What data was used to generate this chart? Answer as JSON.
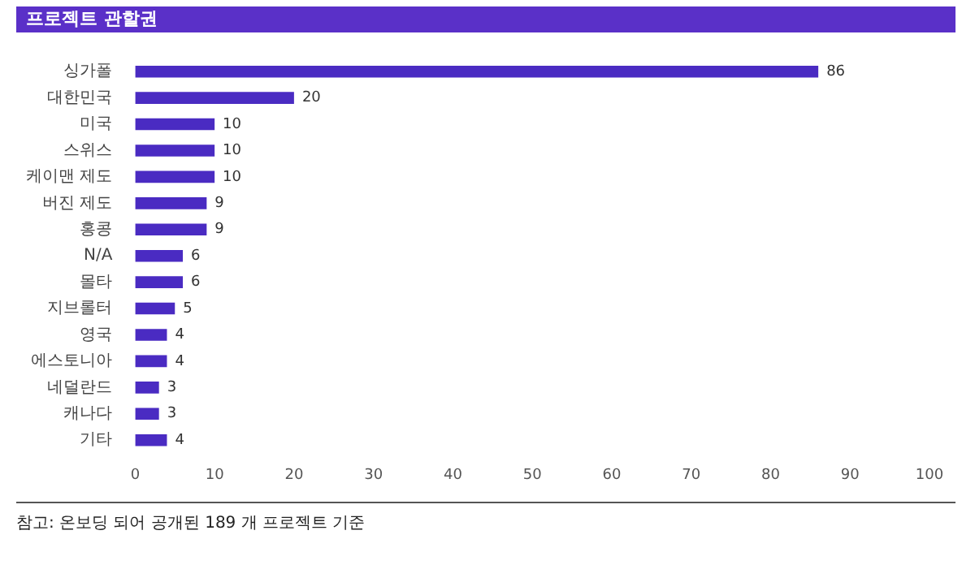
{
  "chart_data": {
    "type": "bar",
    "orientation": "horizontal",
    "title": "프로젝트 관할권",
    "categories": [
      "싱가폴",
      "대한민국",
      "미국",
      "스위스",
      "케이맨 제도",
      "버진 제도",
      "홍콩",
      "N/A",
      "몰타",
      "지브롤터",
      "영국",
      "에스토니아",
      "네덜란드",
      "캐나다",
      "기타"
    ],
    "values": [
      86,
      20,
      10,
      10,
      10,
      9,
      9,
      6,
      6,
      5,
      4,
      4,
      3,
      3,
      4
    ],
    "color": "#4a2bc2",
    "xlim": [
      0,
      100
    ],
    "xticks": [
      0,
      10,
      20,
      30,
      40,
      50,
      60,
      70,
      80,
      90,
      100
    ],
    "grid": false,
    "legend": false,
    "data_labels": true,
    "annotations": [
      "참고: 온보딩 되어 공개된 189 개 프로젝트 기준"
    ]
  }
}
